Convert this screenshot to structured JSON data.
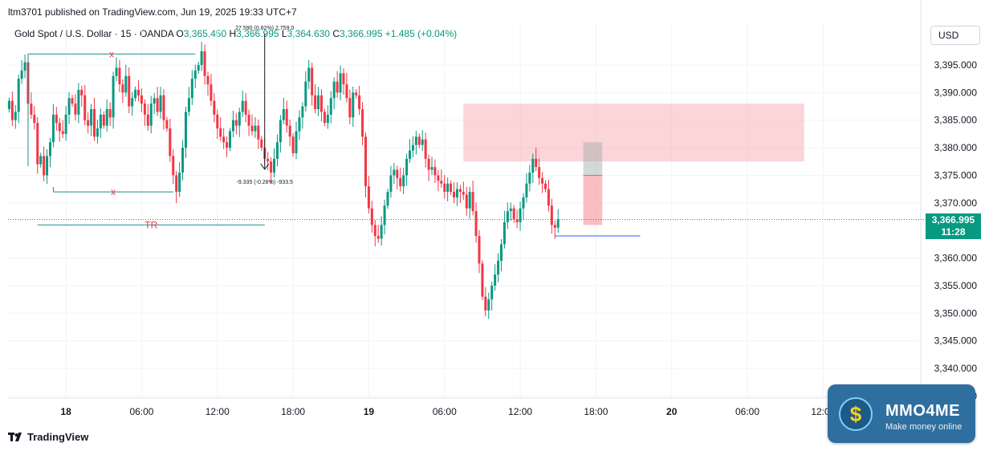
{
  "header": {
    "publisher": "ltm3701 published on TradingView.com, Jun 19, 2025 19:33 UTC+7"
  },
  "legend": {
    "symbol": "Gold Spot / U.S. Dollar · 15 · OANDA",
    "o_label": "O",
    "o_value": "3,365.450",
    "h_label": "H",
    "h_value": "3,366.995",
    "l_label": "L",
    "l_value": "3,364.630",
    "c_label": "C",
    "c_value": "3,366.995",
    "change": "+1.485 (+0.04%)"
  },
  "currency": "USD",
  "price_tag": {
    "price": "3,366.995",
    "countdown": "11:28"
  },
  "brand": "TradingView",
  "watermark": {
    "name": "MMO4ME",
    "tagline": "Make money online",
    "coin_symbol": "$"
  },
  "colors": {
    "up": "#089981",
    "down": "#f23645",
    "zone": "#f7a1a8",
    "accent": "#2962ff"
  },
  "chart_data": {
    "type": "candlestick",
    "y_range": [
      3332,
      3400
    ],
    "y_ticks": [
      {
        "value": 3395,
        "label": "3,395.000"
      },
      {
        "value": 3390,
        "label": "3,390.000"
      },
      {
        "value": 3385,
        "label": "3,385.000"
      },
      {
        "value": 3380,
        "label": "3,380.000"
      },
      {
        "value": 3375,
        "label": "3,375.000"
      },
      {
        "value": 3370,
        "label": "3,370.000"
      },
      {
        "value": 3360,
        "label": "3,360.000"
      },
      {
        "value": 3355,
        "label": "3,355.000"
      },
      {
        "value": 3350,
        "label": "3,350.000"
      },
      {
        "value": 3345,
        "label": "3,345.000"
      },
      {
        "value": 3340,
        "label": "3,340.000"
      },
      {
        "value": 3335,
        "label": "3,335.000"
      }
    ],
    "x_ticks": [
      {
        "label": "18",
        "bar": 18,
        "bold": true
      },
      {
        "label": "06:00",
        "bar": 42
      },
      {
        "label": "12:00",
        "bar": 66
      },
      {
        "label": "18:00",
        "bar": 90
      },
      {
        "label": "19",
        "bar": 114,
        "bold": true
      },
      {
        "label": "06:00",
        "bar": 138
      },
      {
        "label": "12:00",
        "bar": 162
      },
      {
        "label": "18:00",
        "bar": 186
      },
      {
        "label": "20",
        "bar": 210,
        "bold": true
      },
      {
        "label": "06:00",
        "bar": 234
      },
      {
        "label": "12:00",
        "bar": 258
      }
    ],
    "last_price": 3366.995,
    "closes": [
      3388.5,
      3385.0,
      3386.5,
      3392.5,
      3394.0,
      3395.5,
      3388.0,
      3386.0,
      3384.5,
      3377.0,
      3378.5,
      3375.0,
      3378.5,
      3381.0,
      3386.0,
      3384.5,
      3383.0,
      3382.5,
      3386.0,
      3389.0,
      3388.0,
      3386.0,
      3390.5,
      3389.5,
      3385.0,
      3384.0,
      3387.0,
      3382.0,
      3383.5,
      3386.0,
      3384.0,
      3387.0,
      3385.5,
      3393.0,
      3394.5,
      3391.5,
      3390.0,
      3393.0,
      3387.5,
      3389.0,
      3390.5,
      3389.5,
      3388.0,
      3386.0,
      3384.0,
      3388.0,
      3389.0,
      3386.5,
      3389.5,
      3385.0,
      3383.5,
      3378.5,
      3375.0,
      3372.0,
      3375.5,
      3380.0,
      3386.5,
      3389.0,
      3392.5,
      3394.0,
      3395.0,
      3397.5,
      3393.0,
      3391.5,
      3388.5,
      3386.0,
      3383.5,
      3382.0,
      3381.0,
      3380.0,
      3383.0,
      3385.0,
      3384.0,
      3386.5,
      3388.5,
      3386.0,
      3384.0,
      3383.0,
      3384.0,
      3381.5,
      3380.0,
      3378.0,
      3377.5,
      3375.5,
      3378.0,
      3381.0,
      3385.0,
      3387.0,
      3384.0,
      3382.0,
      3379.0,
      3383.0,
      3385.5,
      3387.5,
      3392.0,
      3394.5,
      3389.5,
      3387.0,
      3389.5,
      3386.5,
      3384.5,
      3386.0,
      3389.0,
      3392.0,
      3390.0,
      3393.5,
      3391.5,
      3389.0,
      3385.5,
      3390.0,
      3389.5,
      3387.0,
      3382.0,
      3373.0,
      3369.0,
      3366.0,
      3364.0,
      3363.5,
      3366.0,
      3369.5,
      3372.0,
      3375.0,
      3376.0,
      3374.5,
      3373.0,
      3375.0,
      3378.0,
      3379.5,
      3380.5,
      3382.0,
      3380.5,
      3381.5,
      3378.0,
      3376.0,
      3376.5,
      3375.0,
      3374.0,
      3373.5,
      3372.0,
      3373.5,
      3372.0,
      3371.0,
      3372.5,
      3372.0,
      3371.5,
      3369.0,
      3372.0,
      3368.5,
      3364.0,
      3359.0,
      3353.0,
      3350.5,
      3352.5,
      3355.0,
      3357.0,
      3359.5,
      3362.5,
      3366.5,
      3368.5,
      3369.0,
      3367.0,
      3366.5,
      3369.0,
      3371.0,
      3373.5,
      3375.5,
      3378.0,
      3376.5,
      3374.5,
      3373.5,
      3372.5,
      3369.5,
      3366.0,
      3365.5,
      3366.995
    ],
    "levels": [
      {
        "label": "x",
        "price": 3397.0,
        "from_bar": 6,
        "to_bar": 59
      },
      {
        "label": "x",
        "price": 3372.0,
        "from_bar": 14,
        "to_bar": 52
      },
      {
        "label": "TR",
        "price": 3366.0,
        "from_bar": 9,
        "to_bar": 81
      },
      {
        "label": "",
        "price": 3364.0,
        "from_bar": 173,
        "to_bar": 200
      }
    ],
    "supply_zone": {
      "price_top": 3388.0,
      "price_bottom": 3377.5,
      "from_bar": 144,
      "to_bar": 252
    },
    "short_position": {
      "entry": 3375.0,
      "stop": 3381.0,
      "target": 3366.0,
      "from_bar": 182,
      "to_bar": 188
    },
    "measures": [
      {
        "text": "27.590 (0.82%) 2,759.0",
        "bar": 81
      },
      {
        "text": "-9.335 (-0.28%) -933.5",
        "bar": 81
      }
    ]
  }
}
